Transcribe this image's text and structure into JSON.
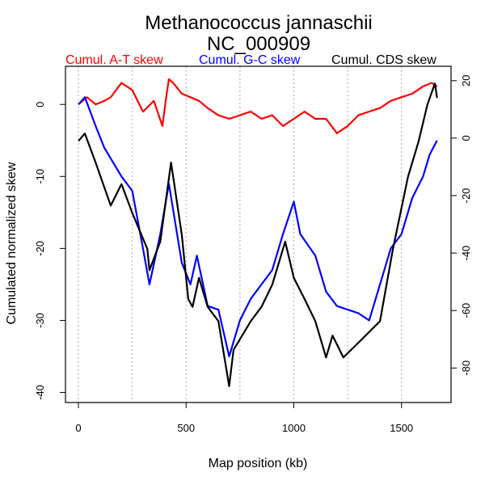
{
  "chart_data": {
    "type": "line",
    "title": "Methanococcus jannaschii",
    "subtitle": "NC_000909",
    "xlabel": "Map position (kb)",
    "ylabel": "Cumulated normalized skew",
    "xlim": [
      -60,
      1730
    ],
    "ylim_left": [
      -41.4,
      5.3
    ],
    "ylim_right": [
      -92,
      25
    ],
    "x_ticks": [
      0,
      500,
      1000,
      1500
    ],
    "y_ticks_left": [
      0,
      -10,
      -20,
      -30,
      -40
    ],
    "y_ticks_right": [
      20,
      0,
      -20,
      -40,
      -60,
      -80
    ],
    "vertical_grid": [
      0,
      250,
      500,
      750,
      1000,
      1250,
      1500
    ],
    "grid": "vertical dotted",
    "legend_placement": "top",
    "series": [
      {
        "name": "Cumul. A-T skew",
        "color": "#ff0000",
        "axis": "left",
        "x": [
          0,
          40,
          80,
          120,
          150,
          200,
          250,
          300,
          350,
          390,
          410,
          420,
          440,
          480,
          520,
          560,
          600,
          650,
          700,
          750,
          800,
          850,
          900,
          950,
          1000,
          1050,
          1100,
          1150,
          1200,
          1250,
          1300,
          1350,
          1400,
          1450,
          1500,
          1550,
          1600,
          1640,
          1665
        ],
        "y": [
          0,
          1,
          0,
          0.5,
          1,
          3,
          2,
          -1,
          0.5,
          -3,
          1.5,
          3.5,
          3,
          1.5,
          1,
          0.5,
          -0.5,
          -1.5,
          -2,
          -1.5,
          -1,
          -2,
          -1.5,
          -3,
          -2,
          -1,
          -2,
          -2,
          -4,
          -3,
          -1.5,
          -1,
          -0.5,
          0.5,
          1,
          1.5,
          2.5,
          3,
          2.5
        ]
      },
      {
        "name": "Cumul. G-C skew",
        "color": "#0000ff",
        "axis": "left",
        "x": [
          0,
          30,
          80,
          120,
          200,
          250,
          300,
          330,
          380,
          420,
          480,
          520,
          550,
          600,
          650,
          700,
          750,
          800,
          850,
          900,
          950,
          1000,
          1030,
          1100,
          1150,
          1200,
          1250,
          1300,
          1350,
          1400,
          1450,
          1500,
          1550,
          1600,
          1630,
          1665
        ],
        "y": [
          0,
          1,
          -3,
          -6,
          -10,
          -12,
          -20,
          -25,
          -18,
          -11,
          -22,
          -25,
          -21,
          -28,
          -28.5,
          -35,
          -30,
          -27,
          -25,
          -23,
          -18,
          -13.5,
          -18,
          -21,
          -26,
          -28,
          -28.5,
          -29,
          -30,
          -25,
          -20,
          -18,
          -13,
          -10,
          -7,
          -5
        ]
      },
      {
        "name": "Cumul. CDS skew",
        "color": "#000000",
        "axis": "right",
        "x": [
          0,
          30,
          80,
          150,
          200,
          250,
          320,
          330,
          380,
          430,
          480,
          510,
          530,
          560,
          600,
          650,
          700,
          720,
          800,
          850,
          900,
          960,
          1000,
          1050,
          1100,
          1150,
          1180,
          1230,
          1300,
          1400,
          1460,
          1530,
          1580,
          1620,
          1655,
          1665
        ],
        "y": [
          -1,
          1.6,
          -8.5,
          -23.5,
          -16,
          -26,
          -38.6,
          -46,
          -36,
          -8.5,
          -33.6,
          -56,
          -58.7,
          -48.6,
          -58.7,
          -63.7,
          -86.3,
          -73.7,
          -63.7,
          -58.7,
          -51,
          -36,
          -48.6,
          -56,
          -63.7,
          -76.3,
          -68.7,
          -76.3,
          -71.2,
          -63.7,
          -38.6,
          -13.5,
          -1,
          11.6,
          19,
          14
        ]
      }
    ]
  }
}
